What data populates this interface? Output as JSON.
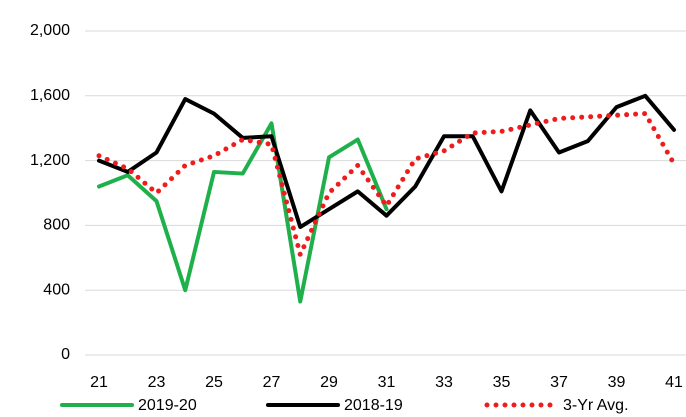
{
  "chart_data": {
    "type": "line",
    "x": [
      21,
      22,
      23,
      24,
      25,
      26,
      27,
      28,
      29,
      30,
      31,
      32,
      33,
      34,
      35,
      36,
      37,
      38,
      39,
      40,
      41
    ],
    "xlim": [
      21,
      41
    ],
    "xticks": [
      21,
      23,
      25,
      27,
      29,
      31,
      33,
      35,
      37,
      39,
      41
    ],
    "ylim": [
      0,
      2000
    ],
    "yticks": [
      0,
      400,
      800,
      {
        "value": 1200,
        "label": "1,200"
      },
      {
        "value": 1600,
        "label": "1,600"
      },
      {
        "value": 2000,
        "label": "2,000"
      }
    ],
    "grid": true,
    "legend": "bottom",
    "series": [
      {
        "name": "2019-20",
        "color": "#1fb04b",
        "style": "solid",
        "values": [
          1040,
          1110,
          950,
          400,
          1130,
          1120,
          1430,
          330,
          1220,
          1330,
          900,
          null,
          null,
          null,
          null,
          null,
          null,
          null,
          null,
          null,
          null
        ]
      },
      {
        "name": "2018-19",
        "color": "#000000",
        "style": "solid",
        "values": [
          1200,
          1130,
          1250,
          1580,
          1490,
          1340,
          1350,
          790,
          900,
          1010,
          860,
          1040,
          1350,
          1350,
          1010,
          1510,
          1250,
          1320,
          1530,
          1600,
          1390
        ]
      },
      {
        "name": "3-Yr Avg.",
        "color": "#ee1c1c",
        "style": "dotted",
        "values": [
          1230,
          1150,
          1000,
          1170,
          1230,
          1330,
          1300,
          620,
          1000,
          1170,
          920,
          1210,
          1260,
          1370,
          1380,
          1420,
          1460,
          1470,
          1480,
          1490,
          1180
        ]
      }
    ]
  }
}
